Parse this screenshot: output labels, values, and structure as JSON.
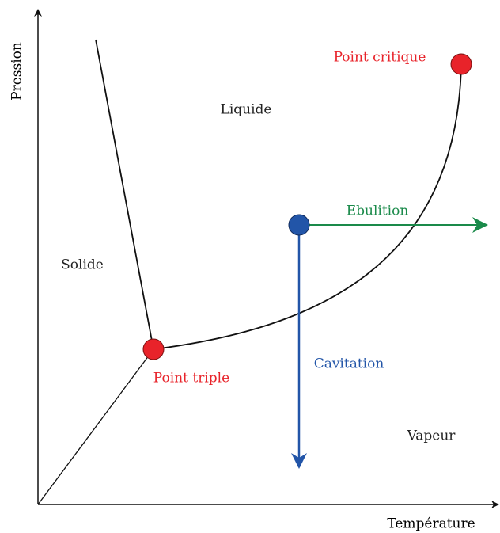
{
  "axes": {
    "y_label": "Pression",
    "x_label": "Température"
  },
  "regions": {
    "solid": "Solide",
    "liquid": "Liquide",
    "vapor": "Vapeur"
  },
  "points": {
    "critical": "Point critique",
    "triple": "Point triple"
  },
  "processes": {
    "boiling": "Ebulition",
    "cavitation": "Cavitation"
  }
}
